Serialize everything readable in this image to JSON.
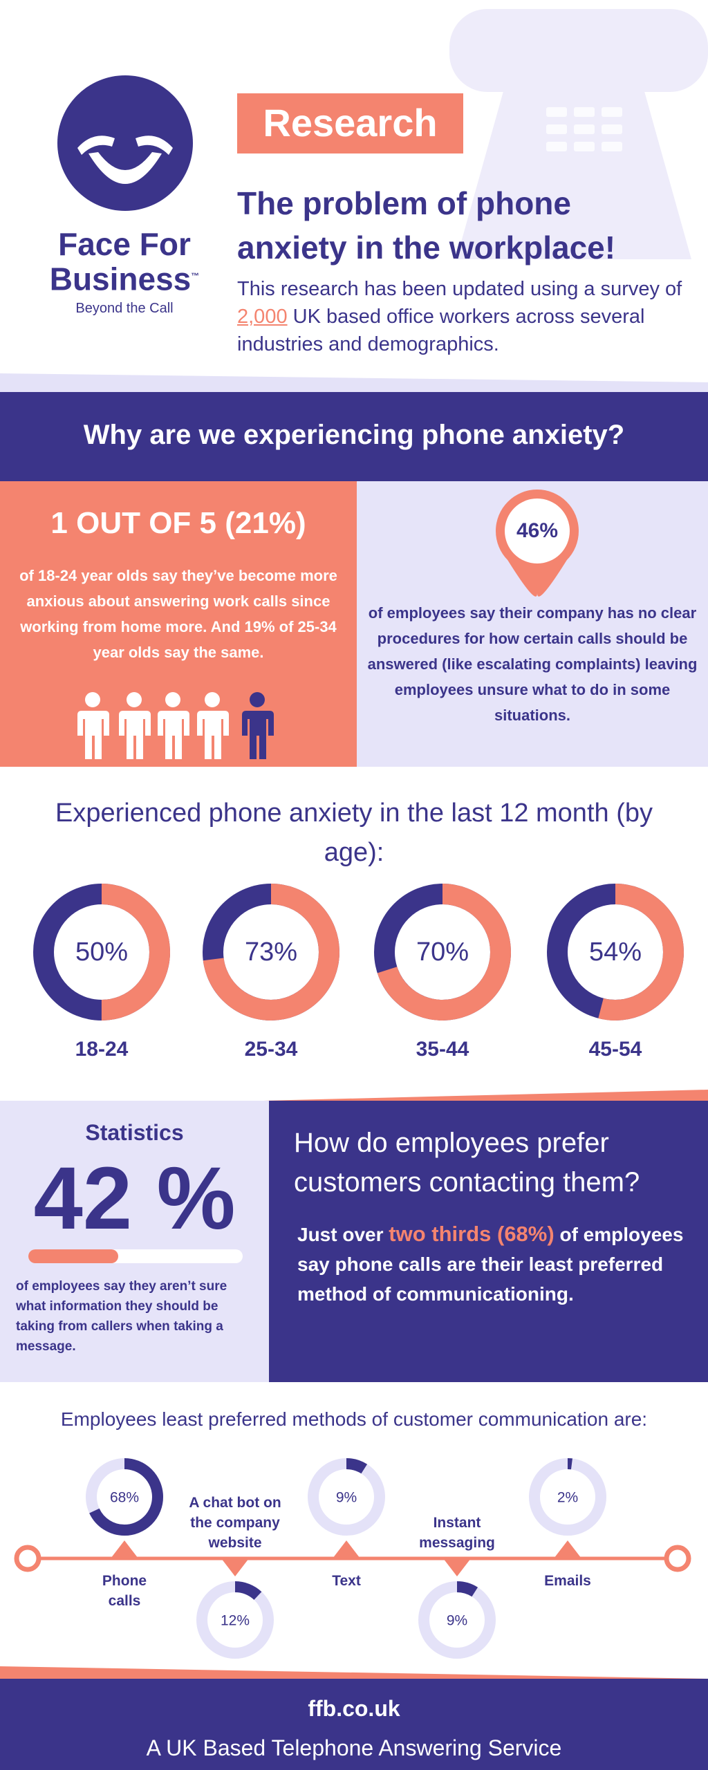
{
  "header": {
    "brand_lines": [
      "Face For",
      "Business"
    ],
    "trademark": "™",
    "tagline": "Beyond the Call",
    "badge": "Research",
    "title_lines": [
      "The problem of phone",
      "anxiety in the workplace!"
    ],
    "description": {
      "before": "This research has been updated using a survey of ",
      "link": "2,000",
      "after": " UK based office workers across several industries and demographics."
    }
  },
  "why_section": {
    "heading": "Why are we experiencing phone anxiety?",
    "left_stat": "1 OUT OF 5 (21%)",
    "left_text": "of 18-24 year olds say they’ve become more anxious about answering work calls since working from home more. And 19% of 25-34 year olds say the same.",
    "right_stat": "46%",
    "right_text": "of employees say their company has no clear procedures for how certain calls should be answered (like escalating complaints) leaving employees unsure what to do in some situations."
  },
  "chart_data": [
    {
      "type": "donut",
      "title": "Experienced phone anxiety in the last 12 month (by age):",
      "categories": [
        "18-24",
        "25-34",
        "35-44",
        "45-54"
      ],
      "values": [
        50,
        73,
        70,
        54
      ],
      "value_labels": [
        "50%",
        "73%",
        "70%",
        "54%"
      ],
      "color": "#f4846f",
      "track_color": "#3b348a"
    },
    {
      "type": "donut",
      "title": "Employees least preferred methods of customer communication are:",
      "categories": [
        "Phone calls",
        "A chat bot on the company website",
        "Text",
        "Instant messaging",
        "Emails"
      ],
      "values": [
        68,
        12,
        9,
        9,
        2
      ],
      "value_labels": [
        "68%",
        "12%",
        "9%",
        "9%",
        "2%"
      ],
      "color": "#3b348a",
      "track_color": "#e4e2f8"
    }
  ],
  "stats_section": {
    "label": "Statistics",
    "big_stat": "42 %",
    "left_text": "of employees say they aren’t sure what information they should be taking from callers when taking a message.",
    "heading": "How do employees prefer customers contacting them?",
    "text_before": "Just over ",
    "highlight": "two thirds (68%)",
    "text_after": " of employees say phone calls are their least preferred method of communicationing."
  },
  "footer": {
    "website": "ffb.co.uk",
    "tagline": "A UK Based Telephone Answering Service"
  }
}
